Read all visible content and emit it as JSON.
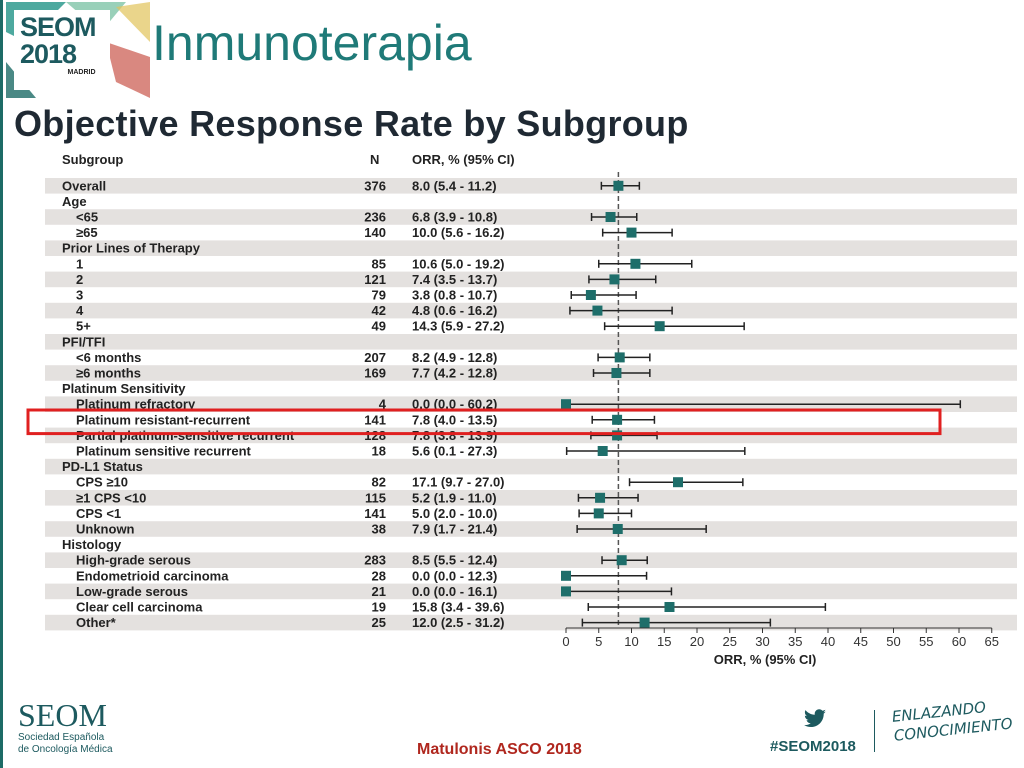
{
  "slide": {
    "logo": {
      "line1": "SEOM",
      "line2": "2018",
      "line3": "MADRID"
    },
    "title": "Inmunoterapia",
    "footer": {
      "brand": "SEOM",
      "brand_sub1": "Sociedad Española",
      "brand_sub2": "de Oncología Médica",
      "citation": "Matulonis ASCO 2018",
      "hashtag": "#SEOM2018",
      "slogan_line1": "ENLAZANDO",
      "slogan_line2": "CONOCIMIENTO"
    },
    "colors": {
      "accent": "#1f7a78",
      "marker": "#1e6e6a",
      "stripe": "#e4e1df",
      "highlight": "#e02020"
    }
  },
  "chart_data": {
    "type": "forest",
    "title": "Objective Response Rate by Subgroup",
    "columns": {
      "subgroup": "Subgroup",
      "n": "N",
      "orr": "ORR, % (95% CI)"
    },
    "xlabel": "ORR, % (95% CI)",
    "xlim": [
      0,
      65
    ],
    "xticks": [
      0,
      5,
      10,
      15,
      20,
      25,
      30,
      35,
      40,
      45,
      50,
      55,
      60,
      65
    ],
    "reference_line": 8.0,
    "highlighted_row": "Platinum resistant-recurrent",
    "rows": [
      {
        "label": "Overall",
        "indent": 0,
        "n": "376",
        "orr": "8.0 (5.4 - 11.2)",
        "est": 8.0,
        "lo": 5.4,
        "hi": 11.2
      },
      {
        "label": "Age",
        "indent": 0,
        "header": true
      },
      {
        "label": "<65",
        "indent": 1,
        "n": "236",
        "orr": "6.8 (3.9 - 10.8)",
        "est": 6.8,
        "lo": 3.9,
        "hi": 10.8
      },
      {
        "label": "≥65",
        "indent": 1,
        "n": "140",
        "orr": "10.0 (5.6 - 16.2)",
        "est": 10.0,
        "lo": 5.6,
        "hi": 16.2
      },
      {
        "label": "Prior Lines of Therapy",
        "indent": 0,
        "header": true
      },
      {
        "label": "1",
        "indent": 1,
        "n": "85",
        "orr": "10.6 (5.0 - 19.2)",
        "est": 10.6,
        "lo": 5.0,
        "hi": 19.2
      },
      {
        "label": "2",
        "indent": 1,
        "n": "121",
        "orr": "7.4 (3.5 - 13.7)",
        "est": 7.4,
        "lo": 3.5,
        "hi": 13.7
      },
      {
        "label": "3",
        "indent": 1,
        "n": "79",
        "orr": "3.8 (0.8 - 10.7)",
        "est": 3.8,
        "lo": 0.8,
        "hi": 10.7
      },
      {
        "label": "4",
        "indent": 1,
        "n": "42",
        "orr": "4.8 (0.6 - 16.2)",
        "est": 4.8,
        "lo": 0.6,
        "hi": 16.2
      },
      {
        "label": "5+",
        "indent": 1,
        "n": "49",
        "orr": "14.3 (5.9 - 27.2)",
        "est": 14.3,
        "lo": 5.9,
        "hi": 27.2
      },
      {
        "label": "PFI/TFI",
        "indent": 0,
        "header": true
      },
      {
        "label": "<6 months",
        "indent": 1,
        "n": "207",
        "orr": "8.2 (4.9 - 12.8)",
        "est": 8.2,
        "lo": 4.9,
        "hi": 12.8
      },
      {
        "label": "≥6 months",
        "indent": 1,
        "n": "169",
        "orr": "7.7 (4.2 - 12.8)",
        "est": 7.7,
        "lo": 4.2,
        "hi": 12.8
      },
      {
        "label": "Platinum Sensitivity",
        "indent": 0,
        "header": true
      },
      {
        "label": "Platinum refractory",
        "indent": 1,
        "n": "4",
        "orr": "0.0 (0.0 - 60.2)",
        "est": 0.0,
        "lo": 0.0,
        "hi": 60.2
      },
      {
        "label": "Platinum resistant-recurrent",
        "indent": 1,
        "n": "141",
        "orr": "7.8 (4.0 - 13.5)",
        "est": 7.8,
        "lo": 4.0,
        "hi": 13.5
      },
      {
        "label": "Partial platinum-sensitive recurrent",
        "indent": 1,
        "n": "128",
        "orr": "7.8 (3.8 - 13.9)",
        "est": 7.8,
        "lo": 3.8,
        "hi": 13.9
      },
      {
        "label": "Platinum sensitive recurrent",
        "indent": 1,
        "n": "18",
        "orr": "5.6 (0.1 - 27.3)",
        "est": 5.6,
        "lo": 0.1,
        "hi": 27.3
      },
      {
        "label": "PD-L1 Status",
        "indent": 0,
        "header": true
      },
      {
        "label": "CPS ≥10",
        "indent": 1,
        "n": "82",
        "orr": "17.1 (9.7 - 27.0)",
        "est": 17.1,
        "lo": 9.7,
        "hi": 27.0
      },
      {
        "label": "≥1 CPS <10",
        "indent": 1,
        "n": "115",
        "orr": "5.2 (1.9 - 11.0)",
        "est": 5.2,
        "lo": 1.9,
        "hi": 11.0
      },
      {
        "label": "CPS <1",
        "indent": 1,
        "n": "141",
        "orr": "5.0 (2.0 - 10.0)",
        "est": 5.0,
        "lo": 2.0,
        "hi": 10.0
      },
      {
        "label": "Unknown",
        "indent": 1,
        "n": "38",
        "orr": "7.9 (1.7 - 21.4)",
        "est": 7.9,
        "lo": 1.7,
        "hi": 21.4
      },
      {
        "label": "Histology",
        "indent": 0,
        "header": true
      },
      {
        "label": "High-grade serous",
        "indent": 1,
        "n": "283",
        "orr": "8.5 (5.5 - 12.4)",
        "est": 8.5,
        "lo": 5.5,
        "hi": 12.4
      },
      {
        "label": "Endometrioid carcinoma",
        "indent": 1,
        "n": "28",
        "orr": "0.0 (0.0 - 12.3)",
        "est": 0.0,
        "lo": 0.0,
        "hi": 12.3
      },
      {
        "label": "Low-grade serous",
        "indent": 1,
        "n": "21",
        "orr": "0.0 (0.0 - 16.1)",
        "est": 0.0,
        "lo": 0.0,
        "hi": 16.1
      },
      {
        "label": "Clear cell carcinoma",
        "indent": 1,
        "n": "19",
        "orr": "15.8 (3.4 - 39.6)",
        "est": 15.8,
        "lo": 3.4,
        "hi": 39.6
      },
      {
        "label": "Other*",
        "indent": 1,
        "n": "25",
        "orr": "12.0 (2.5 - 31.2)",
        "est": 12.0,
        "lo": 2.5,
        "hi": 31.2
      }
    ]
  }
}
